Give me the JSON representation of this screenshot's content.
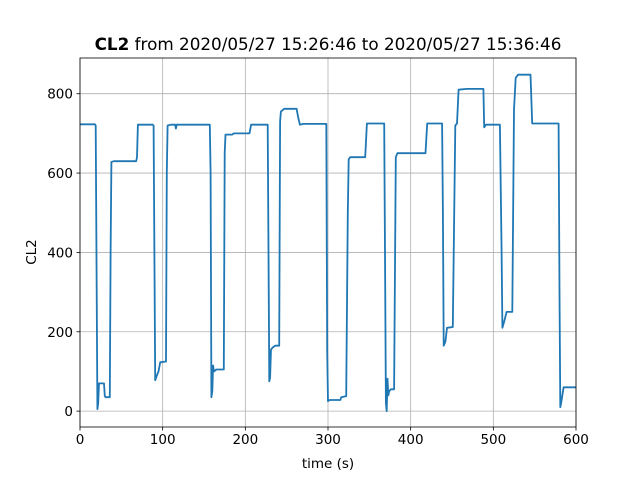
{
  "chart_data": {
    "type": "line",
    "title_bold": "CL2",
    "title_rest": " from 2020/05/27 15:26:46 to 2020/05/27 15:36:46",
    "xlabel": "time (s)",
    "ylabel": "CL2",
    "xlim": [
      0,
      600
    ],
    "ylim": [
      -40,
      890
    ],
    "xticks": [
      0,
      100,
      200,
      300,
      400,
      500,
      600
    ],
    "yticks": [
      0,
      200,
      400,
      600,
      800
    ],
    "grid": true,
    "line_color": "#1f77b4",
    "series": [
      {
        "points": [
          [
            0,
            723
          ],
          [
            18,
            723
          ],
          [
            19,
            720
          ],
          [
            21,
            5
          ],
          [
            22,
            20
          ],
          [
            23,
            70
          ],
          [
            29,
            70
          ],
          [
            30,
            38
          ],
          [
            31,
            35
          ],
          [
            36,
            35
          ],
          [
            37,
            400
          ],
          [
            38,
            628
          ],
          [
            41,
            630
          ],
          [
            68,
            630
          ],
          [
            69,
            640
          ],
          [
            70,
            722
          ],
          [
            88,
            722
          ],
          [
            89,
            720
          ],
          [
            91,
            78
          ],
          [
            93,
            90
          ],
          [
            95,
            100
          ],
          [
            97,
            123
          ],
          [
            104,
            125
          ],
          [
            105,
            600
          ],
          [
            106,
            720
          ],
          [
            110,
            722
          ],
          [
            115,
            722
          ],
          [
            116,
            712
          ],
          [
            117,
            722
          ],
          [
            157,
            722
          ],
          [
            158,
            600
          ],
          [
            159,
            35
          ],
          [
            160,
            50
          ],
          [
            161,
            115
          ],
          [
            162,
            100
          ],
          [
            165,
            105
          ],
          [
            174,
            105
          ],
          [
            175,
            650
          ],
          [
            176,
            697
          ],
          [
            184,
            697
          ],
          [
            186,
            700
          ],
          [
            205,
            700
          ],
          [
            207,
            722
          ],
          [
            227,
            722
          ],
          [
            228,
            400
          ],
          [
            229,
            75
          ],
          [
            230,
            85
          ],
          [
            231,
            155
          ],
          [
            233,
            160
          ],
          [
            236,
            165
          ],
          [
            241,
            165
          ],
          [
            242,
            730
          ],
          [
            243,
            755
          ],
          [
            247,
            762
          ],
          [
            262,
            762
          ],
          [
            264,
            740
          ],
          [
            266,
            722
          ],
          [
            270,
            724
          ],
          [
            282,
            724
          ],
          [
            298,
            724
          ],
          [
            299,
            150
          ],
          [
            300,
            25
          ],
          [
            302,
            28
          ],
          [
            315,
            28
          ],
          [
            316,
            35
          ],
          [
            322,
            38
          ],
          [
            324,
            500
          ],
          [
            325,
            635
          ],
          [
            327,
            640
          ],
          [
            345,
            640
          ],
          [
            347,
            725
          ],
          [
            368,
            725
          ],
          [
            369,
            400
          ],
          [
            370,
            20
          ],
          [
            371,
            0
          ],
          [
            372,
            82
          ],
          [
            373,
            40
          ],
          [
            374,
            50
          ],
          [
            376,
            55
          ],
          [
            380,
            55
          ],
          [
            382,
            640
          ],
          [
            384,
            650
          ],
          [
            402,
            650
          ],
          [
            418,
            650
          ],
          [
            420,
            725
          ],
          [
            438,
            725
          ],
          [
            439,
            500
          ],
          [
            440,
            165
          ],
          [
            442,
            175
          ],
          [
            444,
            210
          ],
          [
            451,
            212
          ],
          [
            454,
            720
          ],
          [
            456,
            725
          ],
          [
            458,
            810
          ],
          [
            468,
            812
          ],
          [
            488,
            812
          ],
          [
            489,
            715
          ],
          [
            491,
            722
          ],
          [
            508,
            722
          ],
          [
            510,
            400
          ],
          [
            511,
            210
          ],
          [
            513,
            225
          ],
          [
            516,
            250
          ],
          [
            523,
            250
          ],
          [
            525,
            760
          ],
          [
            527,
            840
          ],
          [
            530,
            848
          ],
          [
            541,
            848
          ],
          [
            545,
            848
          ],
          [
            547,
            725
          ],
          [
            549,
            725
          ],
          [
            579,
            725
          ],
          [
            580,
            300
          ],
          [
            581,
            10
          ],
          [
            582,
            20
          ],
          [
            585,
            60
          ],
          [
            600,
            60
          ]
        ]
      }
    ]
  }
}
